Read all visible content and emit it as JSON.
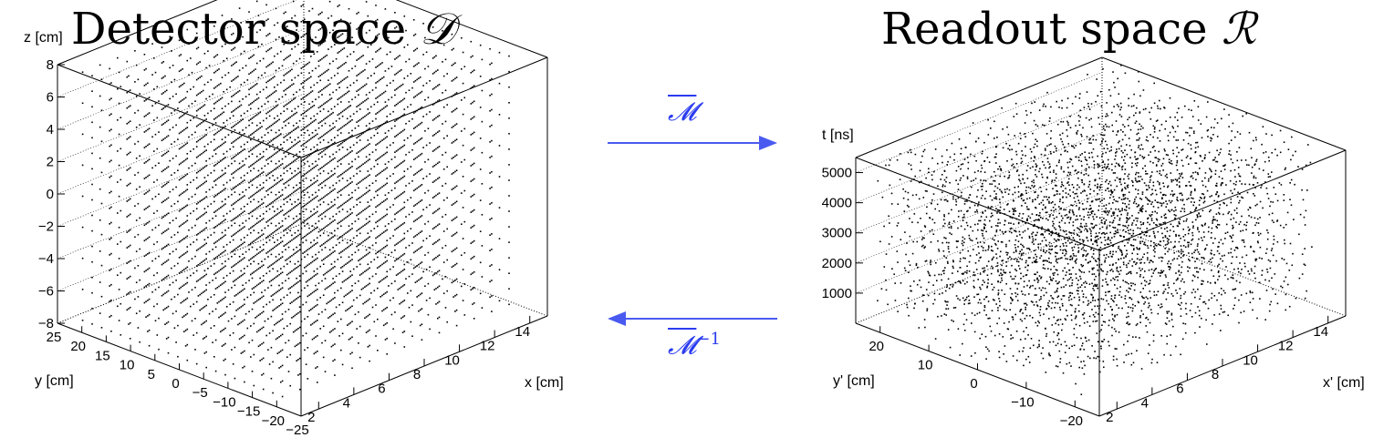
{
  "titles": {
    "left": "Detector space 𝒟",
    "left_text": "Detector space ",
    "left_symbol": "𝒟",
    "right_text": "Readout space ",
    "right_symbol": "ℛ"
  },
  "mappings": {
    "forward_symbol": "𝓜",
    "inverse_symbol": "𝓜",
    "inverse_exponent": "−1",
    "arrow_color": "#4a5af0"
  },
  "chart_data": [
    {
      "type": "scatter",
      "title": "Detector space 𝒟",
      "zlabel": "z [cm]",
      "xlabel": "x [cm]",
      "ylabel": "y [cm]",
      "z_ticks": [
        "8",
        "6",
        "4",
        "2",
        "0",
        "−2",
        "−4",
        "−6",
        "−8"
      ],
      "x_ticks": [
        "2",
        "4",
        "6",
        "8",
        "10",
        "12",
        "14"
      ],
      "y_ticks": [
        "25",
        "20",
        "15",
        "10",
        "5",
        "0",
        "−5",
        "−10",
        "−15",
        "−20",
        "−25"
      ],
      "zlim": [
        -8,
        8
      ],
      "xlim": [
        1,
        15
      ],
      "ylim": [
        -25,
        25
      ],
      "point_color": "#000000",
      "grid": "regular lattice of points"
    },
    {
      "type": "scatter",
      "title": "Readout space ℛ",
      "zlabel": "t [ns]",
      "xlabel": "x' [cm]",
      "ylabel": "y' [cm]",
      "z_ticks": [
        "5000",
        "4000",
        "3000",
        "2000",
        "1000"
      ],
      "x_ticks": [
        "2",
        "4",
        "6",
        "8",
        "10",
        "12",
        "14"
      ],
      "y_ticks": [
        "20",
        "10",
        "0",
        "−10",
        "−20"
      ],
      "zlim": [
        0,
        5500
      ],
      "xlim": [
        1,
        15
      ],
      "ylim": [
        -25,
        25
      ],
      "point_color": "#000000",
      "grid": "distorted lattice of points"
    }
  ]
}
